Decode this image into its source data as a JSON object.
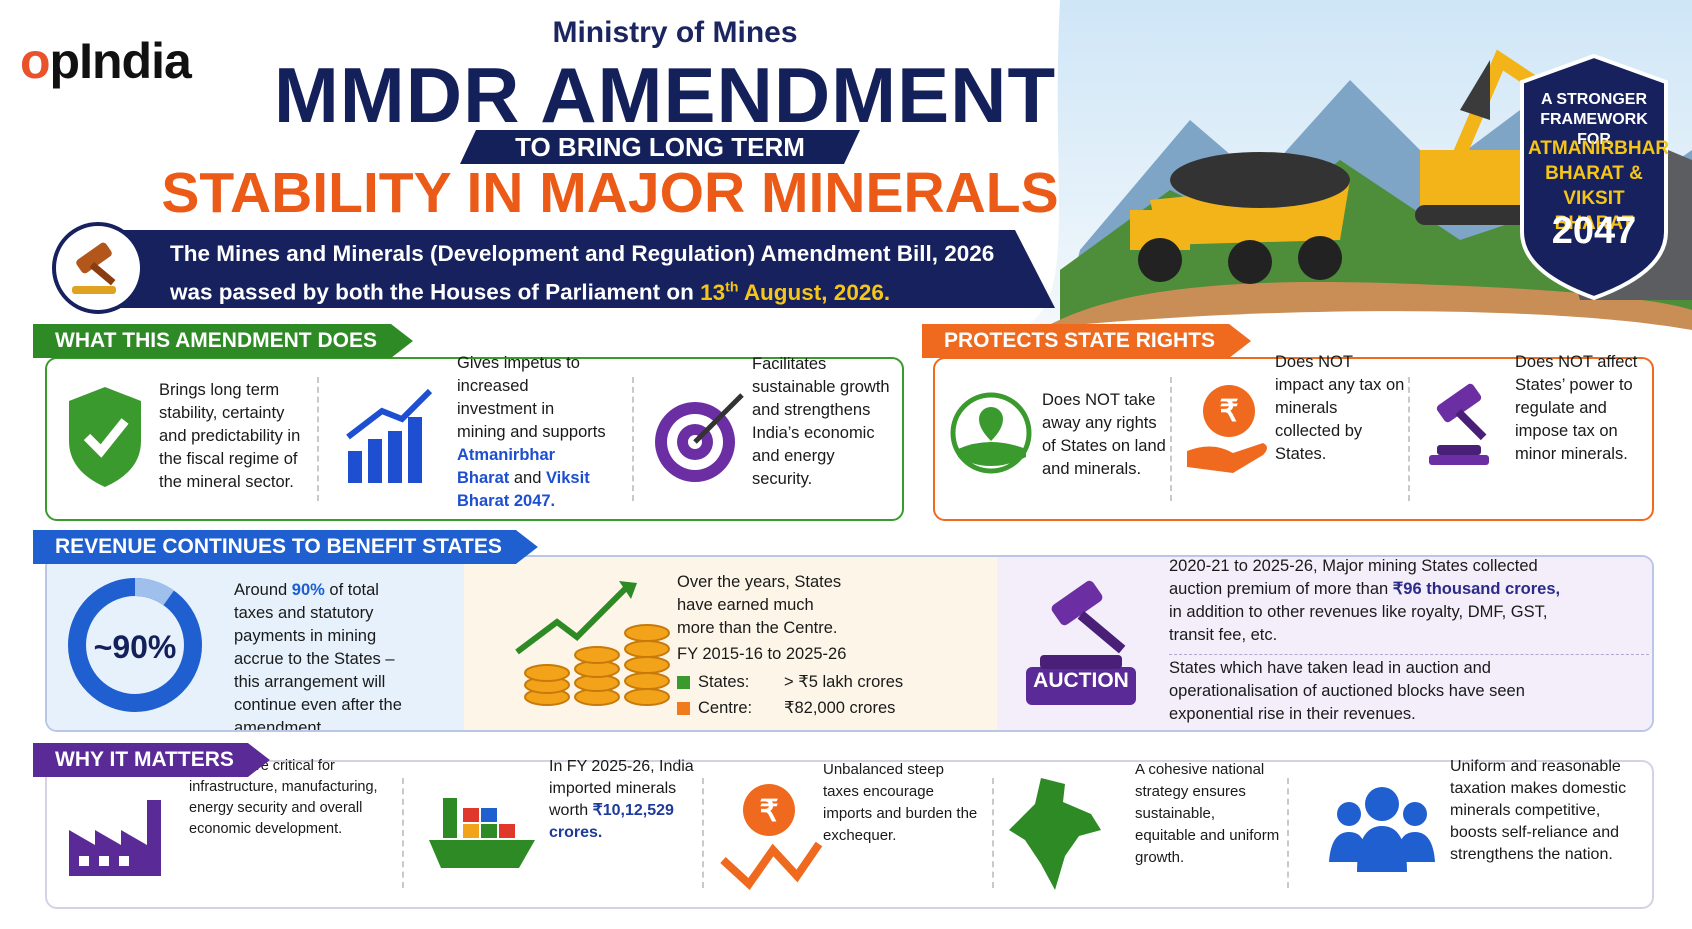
{
  "header": {
    "logo": "opIndia",
    "ministry": "Ministry of Mines",
    "title": "MMDR AMENDMENT",
    "banner": "TO BRING LONG TERM",
    "headline": "STABILITY IN MAJOR MINERALS SECTOR",
    "bill": {
      "line1": "The Mines and Minerals (Development and Regulation) Amendment Bill, 2026",
      "line2": "was passed by both the Houses of Parliament on",
      "date_day": "13",
      "date_suffix": "th",
      "date_rest": "August, 2026."
    }
  },
  "badge": {
    "top": "A STRONGER FRAMEWORK FOR",
    "highlight": "ATMANIRBHAR BHARAT & VIKSIT BHARAT",
    "year": "2047"
  },
  "what": {
    "title": "WHAT THIS AMENDMENT DOES",
    "items": [
      [
        "Brings long term stability, certainty and predictability in the fiscal regime of the mineral sector."
      ],
      [
        "Gives impetus to increased investment in mining and supports ",
        "Atmanirbhar Bharat",
        " and ",
        "Viksit Bharat 2047."
      ],
      [
        "Facilitates sustainable growth and strengthens India’s economic and energy security."
      ]
    ]
  },
  "rights": {
    "title": "PROTECTS STATE RIGHTS",
    "items": [
      [
        "Does NOT take away any rights of States on land and minerals."
      ],
      [
        "Does NOT impact any tax on minerals collected by States."
      ],
      [
        "Does NOT affect States’ power to regulate and impose tax on minor minerals."
      ]
    ]
  },
  "revenue": {
    "title": "REVENUE CONTINUES TO BENEFIT STATES",
    "ring": "~90%",
    "share": [
      "Around ",
      "90%",
      " of total taxes and statutory payments in mining accrue to the States – this arrangement will continue even after the amendment."
    ],
    "earned": "Over the years, States have earned much more than the Centre.",
    "period": "FY 2015-16 to 2025-26",
    "legend": [
      {
        "label": "States:",
        "amount": "> ₹5 lakh crores",
        "color": "#3a9a2e"
      },
      {
        "label": "Centre:",
        "amount": "₹82,000 crores",
        "color": "#f07a1c"
      }
    ],
    "auction_label": "AUCTION",
    "auction": [
      "2020-21 to 2025-26, Major mining States collected auction premium of more than ",
      "₹96 thousand crores,",
      " in addition to other revenues like royalty, DMF, GST, transit fee, etc."
    ],
    "lead": [
      "States which have taken lead in auction and operationalisation of auctioned blocks have seen exponential rise in their revenues."
    ]
  },
  "why": {
    "title": "WHY IT MATTERS",
    "items": [
      [
        "Minerals are critical for infrastructure, manufacturing, energy security and overall economic development."
      ],
      [
        "In FY 2025-26, India imported minerals worth ",
        "₹10,12,529 crores."
      ],
      [
        "Unbalanced steep taxes encourage imports and burden the exchequer."
      ],
      [
        "A cohesive national strategy ensures sustainable, equitable and uniform growth."
      ],
      [
        "Uniform and reasonable taxation makes domestic minerals competitive, boosts self-reliance and strengthens the nation."
      ]
    ]
  }
}
